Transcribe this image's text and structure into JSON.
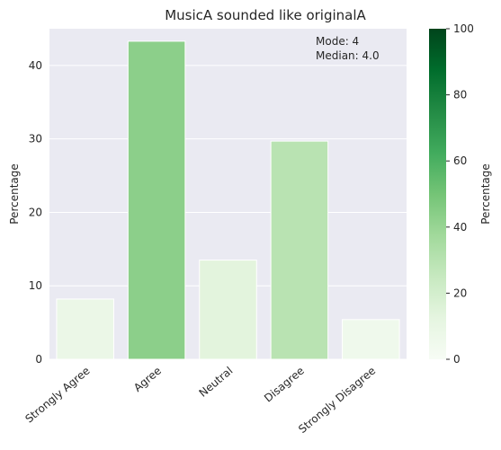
{
  "chart_data": {
    "type": "bar",
    "title": "MusicA sounded like originalA",
    "xlabel": "",
    "ylabel": "Percentage",
    "categories": [
      "Strongly Agree",
      "Agree",
      "Neutral",
      "Disagree",
      "Strongly Disagree"
    ],
    "values": [
      8.2,
      43.3,
      13.5,
      29.7,
      5.4
    ],
    "ylim": [
      0,
      45
    ],
    "yticks": [
      0,
      10,
      20,
      30,
      40
    ],
    "grid": true,
    "annotation": [
      "Mode: 4",
      "Median: 4.0"
    ],
    "colorbar": {
      "label": "Percentage",
      "range": [
        0,
        100
      ],
      "ticks": [
        0,
        20,
        40,
        60,
        80,
        100
      ],
      "colormap": "Greens",
      "stops": [
        "#f7fcf5",
        "#e5f5e0",
        "#c7e9c0",
        "#a1d99b",
        "#74c476",
        "#41ab5d",
        "#238b45",
        "#006d2c",
        "#00441b"
      ]
    },
    "colors": {
      "plot_background": "#eaeaf2",
      "grid": "#ffffff",
      "text": "#262626"
    }
  }
}
